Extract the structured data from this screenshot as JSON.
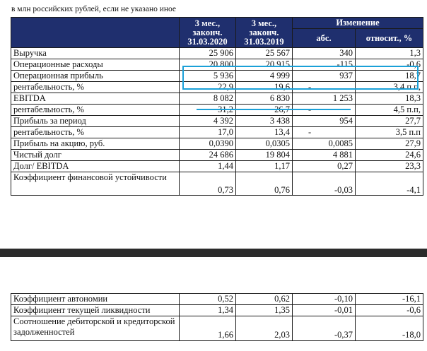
{
  "subtitle": "в млн российских рублей, если не указано иное",
  "header": {
    "col1": [
      "3 мес.,",
      "законч.",
      "31.03.2020"
    ],
    "col2": [
      "3 мес.,",
      "законч.",
      "31.03.2019"
    ],
    "change": "Изменение",
    "abs": "абс.",
    "rel": "относит., %"
  },
  "rows": [
    {
      "label": "Выручка",
      "v2020": "25 906",
      "v2019": "25 567",
      "abs": "340",
      "rel": "1,3"
    },
    {
      "label": "Операционные расходы",
      "v2020": "20 800",
      "v2019": "20 915",
      "abs": "-115",
      "rel": "-0,6"
    },
    {
      "label": "Операционная прибыль",
      "v2020": "5 936",
      "v2019": "4 999",
      "abs": "937",
      "rel": "18,7"
    },
    {
      "label": "рентабельность, %",
      "v2020": "22,9",
      "v2019": "19,6",
      "abs": "-",
      "rel": "3,4 п.п,",
      "dash": true
    },
    {
      "label": "EBITDA",
      "v2020": "8 082",
      "v2019": "6 830",
      "abs": "1 253",
      "rel": "18,3"
    },
    {
      "label": "рентабельность, %",
      "v2020": "31,2",
      "v2019": "26,7",
      "abs": "-",
      "rel": "4,5 п.п,",
      "dash": true
    },
    {
      "label": "Прибыль за период",
      "v2020": "4 392",
      "v2019": "3 438",
      "abs": "954",
      "rel": "27,7"
    },
    {
      "label": "рентабельность, %",
      "v2020": "17,0",
      "v2019": "13,4",
      "abs": "-",
      "rel": "3,5 п.п",
      "dash": true
    },
    {
      "label": "Прибыль на акцию, руб.",
      "v2020": "0,0390",
      "v2019": "0,0305",
      "abs": "0,0085",
      "rel": "27,9"
    },
    {
      "label": "Чистый долг",
      "v2020": "24 686",
      "v2019": "19 804",
      "abs": "4 881",
      "rel": "24,6"
    },
    {
      "label": "Долг/ EBITDA",
      "v2020": "1,44",
      "v2019": "1,17",
      "abs": "0,27",
      "rel": "23,3"
    },
    {
      "label": "Коэффициент финансовой устойчивости",
      "v2020": "0,73",
      "v2019": "0,76",
      "abs": "-0,03",
      "rel": "-4,1",
      "tall": true
    }
  ],
  "rows2": [
    {
      "label": "Коэффициент автономии",
      "v2020": "0,52",
      "v2019": "0,62",
      "abs": "-0,10",
      "rel": "-16,1"
    },
    {
      "label": "Коэффициент текущей ликвидности",
      "v2020": "1,34",
      "v2019": "1,35",
      "abs": "-0,01",
      "rel": "-0,6"
    },
    {
      "label": "Соотношение дебиторской и кредиторской задолженностей",
      "v2020": "1,66",
      "v2019": "2,03",
      "abs": "-0,37",
      "rel": "-18,0",
      "tall": true
    }
  ],
  "colors": {
    "header_bg": "#1f2f6e",
    "highlight": "#1aa0d8"
  }
}
